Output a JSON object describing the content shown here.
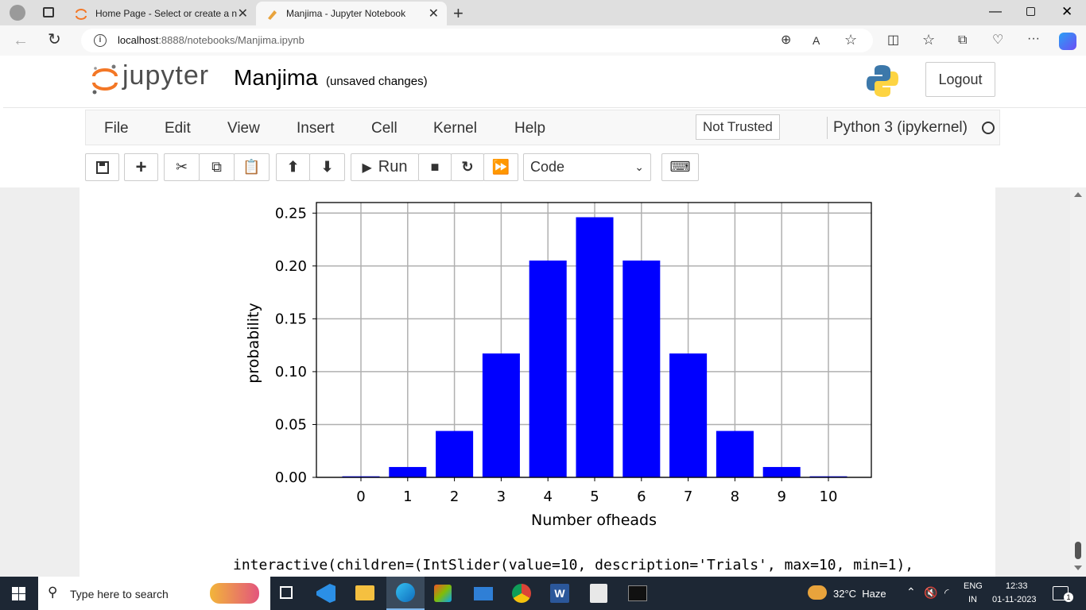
{
  "browser": {
    "tabs": [
      {
        "title": "Home Page - Select or create a n",
        "active": false
      },
      {
        "title": "Manjima - Jupyter Notebook",
        "active": true
      }
    ],
    "url_host": "localhost",
    "url_rest": ":8888/notebooks/Manjima.ipynb"
  },
  "jupyter": {
    "logo_text": "jupyter",
    "notebook_name": "Manjima",
    "save_status": "(unsaved changes)",
    "logout_label": "Logout",
    "menus": [
      "File",
      "Edit",
      "View",
      "Insert",
      "Cell",
      "Kernel",
      "Help"
    ],
    "trust_label": "Not Trusted",
    "kernel_name": "Python 3 (ipykernel)",
    "run_label": "Run",
    "cell_type": "Code"
  },
  "chart_data": {
    "type": "bar",
    "categories": [
      "0",
      "1",
      "2",
      "3",
      "4",
      "5",
      "6",
      "7",
      "8",
      "9",
      "10"
    ],
    "values": [
      0.001,
      0.0098,
      0.0439,
      0.1172,
      0.2051,
      0.2461,
      0.2051,
      0.1172,
      0.0439,
      0.0098,
      0.001
    ],
    "xlabel": "Number ofheads",
    "ylabel": "probability",
    "ylim": [
      0,
      0.26
    ],
    "yticks": [
      "0.00",
      "0.05",
      "0.10",
      "0.15",
      "0.20",
      "0.25"
    ],
    "grid": true,
    "bar_color": "#0000ff"
  },
  "output_line": "interactive(children=(IntSlider(value=10, description='Trials', max=10, min=1),",
  "taskbar": {
    "search_placeholder": "Type here to search",
    "weather": "32°C  Haze",
    "lang_top": "ENG",
    "lang_bottom": "IN",
    "time": "12:33",
    "date": "01-11-2023",
    "notif_count": "1"
  },
  "colors": {
    "accent_orange": "#f37726",
    "bar": "#0000ff",
    "taskbar": "#1d2734"
  }
}
